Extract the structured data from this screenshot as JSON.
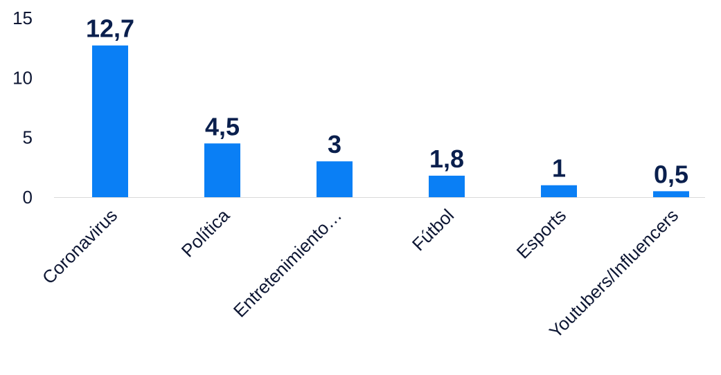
{
  "chart_data": {
    "type": "bar",
    "categories": [
      "Coronavirus",
      "Política",
      "Entretenimiento…",
      "Fútbol",
      "Esports",
      "Youtubers/Influencers"
    ],
    "values": [
      12.7,
      4.5,
      3,
      1.8,
      1,
      0.5
    ],
    "value_labels": [
      "12,7",
      "4,5",
      "3",
      "1,8",
      "1",
      "0,5"
    ],
    "y_ticks": [
      0,
      5,
      10,
      15
    ],
    "y_tick_labels": [
      "0",
      "5",
      "10",
      "15"
    ],
    "ylim": [
      0,
      15
    ],
    "title": "",
    "xlabel": "",
    "ylabel": "",
    "grid": false,
    "legend": "none",
    "colors": {
      "bar": "#0a7ff5",
      "value_label": "#0a1f4d",
      "axis_text": "#0d1633",
      "axis_line": "#d9d9d9"
    }
  }
}
